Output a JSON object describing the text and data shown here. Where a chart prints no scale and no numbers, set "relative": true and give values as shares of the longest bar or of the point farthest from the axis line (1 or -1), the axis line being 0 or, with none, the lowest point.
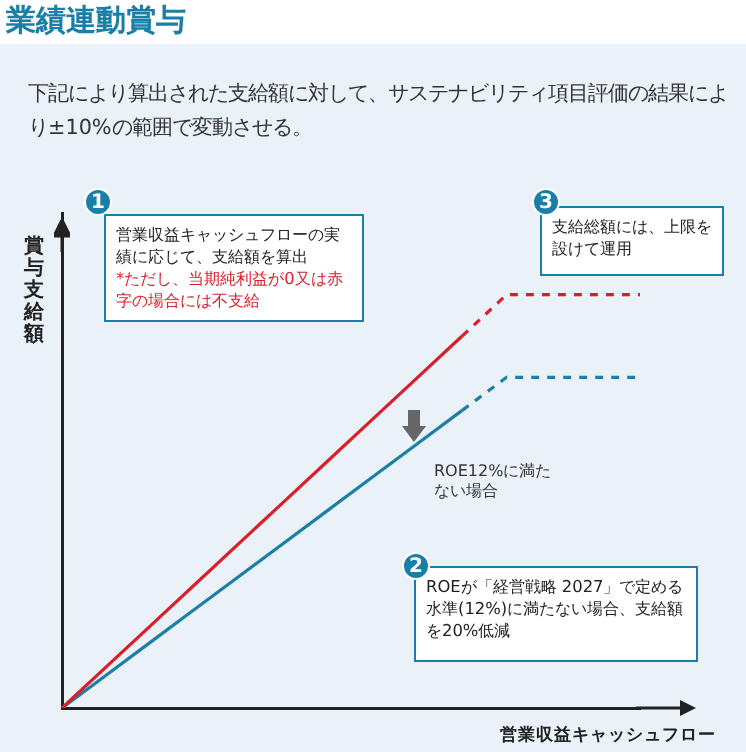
{
  "chart_data": {
    "type": "line",
    "title": "業績連動賞与",
    "subtitle": "下記により算出された支給額に対して、サステナビリティ項目評価の結果により±10%の範囲で変動させる。",
    "xlabel": "営業収益キャッシュフロー",
    "ylabel": "賞与支給額",
    "relative": true,
    "legend": false,
    "grid": false,
    "marker": "none",
    "categories": [
      null,
      null,
      null,
      null,
      null,
      null,
      null,
      null,
      null,
      null,
      null,
      null,
      null,
      null
    ],
    "series": [
      {
        "color": "#d7202a",
        "line_style": "solid",
        "values": [
          0,
          0.1,
          0.2,
          0.3,
          0.4,
          0.5,
          0.6,
          0.7,
          0.8,
          0.9,
          null,
          null,
          null,
          null
        ]
      },
      {
        "color": "#d7202a",
        "line_style": "dashed",
        "values": [
          null,
          null,
          null,
          null,
          null,
          null,
          null,
          null,
          null,
          0.9,
          1,
          1,
          1,
          1
        ]
      },
      {
        "color": "#1b7fa6",
        "line_style": "solid",
        "values": [
          0,
          0.08,
          0.16,
          0.24,
          0.32,
          0.4,
          0.48,
          0.56,
          0.64,
          0.72,
          null,
          null,
          null,
          null
        ]
      },
      {
        "color": "#1b7fa6",
        "line_style": "dashed",
        "values": [
          null,
          null,
          null,
          null,
          null,
          null,
          null,
          null,
          null,
          0.72,
          0.8,
          0.8,
          0.8,
          0.8
        ]
      }
    ],
    "annotations": [
      "1",
      "営業収益キャッシュフローの実績に応じて、支給額を算出",
      "*ただし、当期純利益が0又は赤字の場合には不支給",
      "2",
      "ROEが「経営戦略 2027」で定める水準(12%)に満たない場合、支給額を20%低減",
      "3",
      "支給総額には、上限を設けて運用",
      "ROE12%に満たない場合"
    ]
  }
}
